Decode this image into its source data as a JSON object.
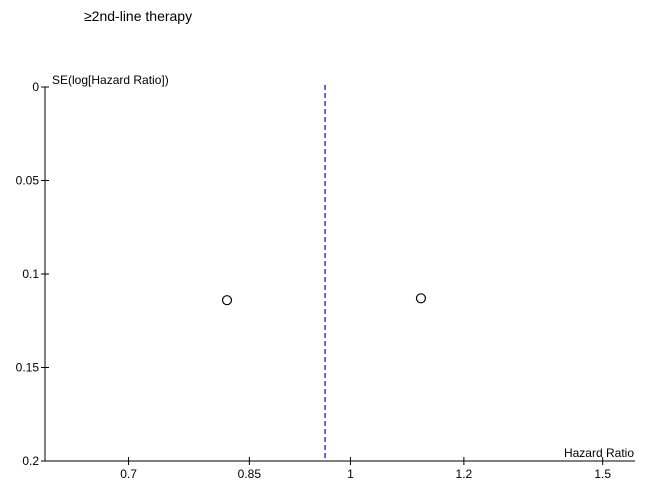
{
  "chart_data": {
    "type": "scatter",
    "title": "≥2nd-line therapy",
    "xlabel": "Hazard Ratio",
    "ylabel": "SE(log[Hazard Ratio])",
    "x_scale": "log",
    "y_reversed": true,
    "xlim": [
      0.612,
      1.58
    ],
    "ylim": [
      0,
      0.2
    ],
    "x_ticks": [
      {
        "value": 0.7,
        "label": "0.7"
      },
      {
        "value": 0.85,
        "label": "0.85"
      },
      {
        "value": 1,
        "label": "1"
      },
      {
        "value": 1.2,
        "label": "1.2"
      },
      {
        "value": 1.5,
        "label": "1.5"
      }
    ],
    "y_ticks": [
      {
        "value": 0,
        "label": "0"
      },
      {
        "value": 0.05,
        "label": "0.05"
      },
      {
        "value": 0.1,
        "label": "0.1"
      },
      {
        "value": 0.15,
        "label": "0.15"
      },
      {
        "value": 0.2,
        "label": "0.2"
      }
    ],
    "points": [
      {
        "x": 0.82,
        "y": 0.114
      },
      {
        "x": 1.12,
        "y": 0.113
      }
    ],
    "reference_line": {
      "x": 0.96,
      "color": "#0000cc",
      "style": "dashed"
    },
    "grid": false,
    "legend": "none"
  }
}
